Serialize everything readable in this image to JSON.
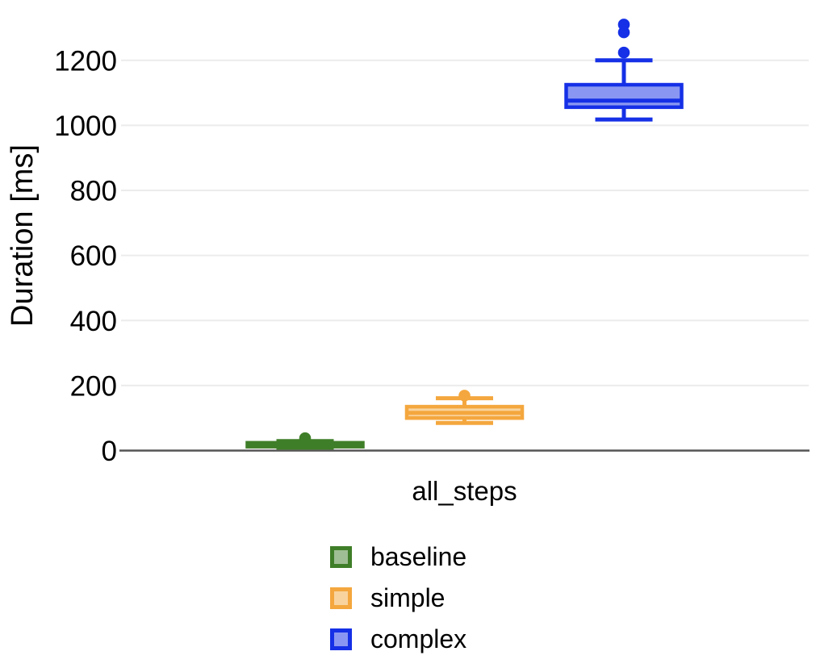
{
  "chart_data": {
    "type": "boxplot",
    "orientation": "vertical",
    "title": "",
    "xlabel": "",
    "ylabel": "Duration [ms]",
    "categories": [
      "all_steps"
    ],
    "y_ticks": [
      0,
      200,
      400,
      600,
      800,
      1000,
      1200
    ],
    "ylim": [
      0,
      1350
    ],
    "grid": true,
    "legend_position": "bottom",
    "series": [
      {
        "name": "baseline",
        "color": "#3f7e28",
        "box": {
          "low": 9,
          "q1": 12,
          "median": 17,
          "q3": 24,
          "high": 29,
          "outliers": [
            38
          ]
        }
      },
      {
        "name": "simple",
        "color": "#f4a73e",
        "box": {
          "low": 85,
          "q1": 100,
          "median": 116,
          "q3": 135,
          "high": 161,
          "outliers": [
            169
          ]
        }
      },
      {
        "name": "complex",
        "color": "#1530e6",
        "box": {
          "low": 1018,
          "q1": 1056,
          "median": 1076,
          "q3": 1125,
          "high": 1200,
          "outliers": [
            1224,
            1286,
            1310
          ]
        }
      }
    ]
  },
  "colors": {
    "gridline": "#ececec",
    "axis_line": "#555555",
    "text": "#000000",
    "background": "#ffffff"
  }
}
